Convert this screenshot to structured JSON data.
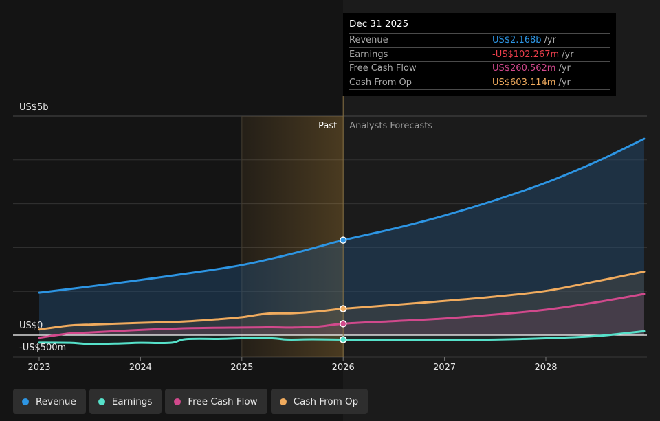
{
  "chart_data": {
    "type": "line",
    "x_ticks": [
      "2023",
      "2024",
      "2025",
      "2026",
      "2027",
      "2028"
    ],
    "y_ticks": [
      {
        "value": 5000,
        "label": "US$5b"
      },
      {
        "value": 0,
        "label": "US$0"
      },
      {
        "value": -500,
        "label": "-US$500m"
      }
    ],
    "ylim": [
      -500,
      5000
    ],
    "xlim": [
      2022.83,
      2028.97
    ],
    "units": "US$ millions",
    "zones": {
      "past_label": "Past",
      "forecast_label": "Analysts Forecasts",
      "divider_x": 2026.0,
      "highlight_start_x": 2025.0
    },
    "series": [
      {
        "name": "Revenue",
        "color": "#2d95e3",
        "x": [
          2023.0,
          2023.5,
          2024.0,
          2024.5,
          2025.0,
          2025.5,
          2026.0,
          2026.5,
          2027.0,
          2027.5,
          2028.0,
          2028.5,
          2028.97
        ],
        "y": [
          970,
          1110,
          1260,
          1420,
          1600,
          1860,
          2168,
          2430,
          2730,
          3080,
          3480,
          3960,
          4480
        ]
      },
      {
        "name": "Earnings",
        "color": "#56e1ca",
        "x": [
          2023.0,
          2023.3,
          2023.5,
          2023.8,
          2024.0,
          2024.3,
          2024.45,
          2024.8,
          2025.0,
          2025.3,
          2025.45,
          2025.7,
          2026.0,
          2026.5,
          2027.0,
          2027.5,
          2028.0,
          2028.5,
          2028.97
        ],
        "y": [
          -170,
          -175,
          -200,
          -190,
          -175,
          -175,
          -90,
          -85,
          -70,
          -70,
          -100,
          -95,
          -102,
          -110,
          -110,
          -100,
          -70,
          -20,
          90
        ]
      },
      {
        "name": "Free Cash Flow",
        "color": "#d1498c",
        "x": [
          2023.0,
          2023.3,
          2023.5,
          2024.0,
          2024.5,
          2025.0,
          2025.3,
          2025.5,
          2025.75,
          2026.0,
          2026.5,
          2027.0,
          2027.5,
          2028.0,
          2028.5,
          2028.97
        ],
        "y": [
          -60,
          40,
          60,
          120,
          160,
          175,
          180,
          175,
          195,
          261,
          320,
          380,
          470,
          580,
          750,
          940
        ]
      },
      {
        "name": "Cash From Op",
        "color": "#f0ab5e",
        "x": [
          2023.0,
          2023.3,
          2023.5,
          2024.0,
          2024.3,
          2024.5,
          2024.75,
          2025.0,
          2025.25,
          2025.5,
          2025.75,
          2026.0,
          2026.5,
          2027.0,
          2027.5,
          2028.0,
          2028.5,
          2028.97
        ],
        "y": [
          130,
          220,
          240,
          280,
          300,
          320,
          360,
          410,
          490,
          500,
          540,
          603,
          690,
          780,
          880,
          1010,
          1230,
          1450
        ]
      }
    ],
    "markers": {
      "x": 2026.0,
      "values": [
        2168,
        -102,
        261,
        603
      ]
    },
    "legend_position": "bottom-left"
  },
  "tooltip": {
    "title": "Dec 31 2025",
    "unit": "/yr",
    "rows": [
      {
        "label": "Revenue",
        "value": "US$2.168b",
        "color": "#2d95e3"
      },
      {
        "label": "Earnings",
        "value": "-US$102.267m",
        "color": "#ee3f4c"
      },
      {
        "label": "Free Cash Flow",
        "value": "US$260.562m",
        "color": "#d1498c"
      },
      {
        "label": "Cash From Op",
        "value": "US$603.114m",
        "color": "#f0ab5e"
      }
    ]
  },
  "legend": [
    {
      "label": "Revenue",
      "color": "#2d95e3"
    },
    {
      "label": "Earnings",
      "color": "#56e1ca"
    },
    {
      "label": "Free Cash Flow",
      "color": "#d1498c"
    },
    {
      "label": "Cash From Op",
      "color": "#f0ab5e"
    }
  ]
}
